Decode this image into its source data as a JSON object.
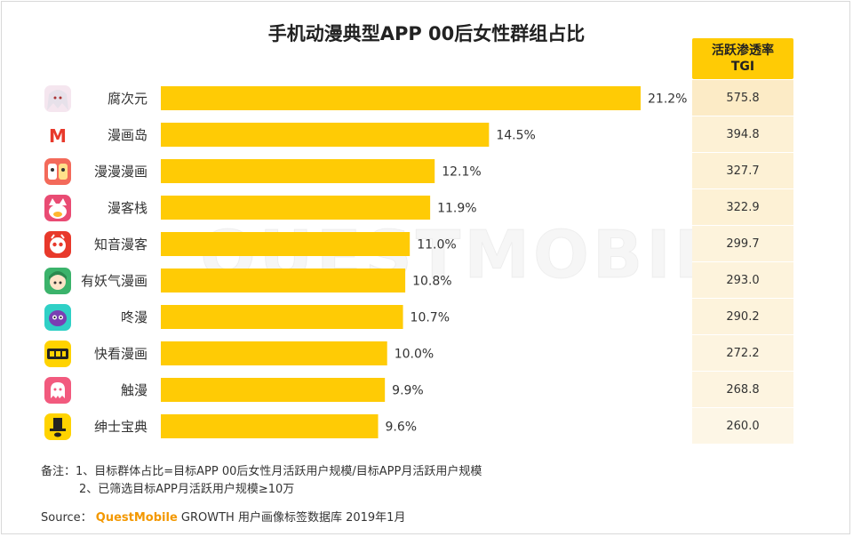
{
  "title": "手机动漫典型APP 00后女性群组占比",
  "watermark": "QUESTMOBILE",
  "tgi_header_line1": "活跃渗透率",
  "tgi_header_line2": "TGI",
  "colors": {
    "bar": "#ffcb05",
    "tgi_header": "#ffcb05",
    "tgi_cells": [
      "#fcebc6",
      "#fdf1d5",
      "#fdf1d5",
      "#fdf1d5",
      "#fdf3dc",
      "#fdf3dc",
      "#fdf3dc",
      "#fdf4e0",
      "#fdf4e0",
      "#fdf6e6"
    ]
  },
  "apps": [
    {
      "name": "腐次元",
      "icon": "anime-girl-icon"
    },
    {
      "name": "漫画岛",
      "icon": "red-m-icon"
    },
    {
      "name": "漫漫漫画",
      "icon": "cartoon-characters-icon"
    },
    {
      "name": "漫客栈",
      "icon": "cat-mascot-icon"
    },
    {
      "name": "知音漫客",
      "icon": "red-mascot-icon"
    },
    {
      "name": "有妖气漫画",
      "icon": "green-girl-icon"
    },
    {
      "name": "咚漫",
      "icon": "purple-mascot-icon"
    },
    {
      "name": "快看漫画",
      "icon": "kuaikan-logo-icon"
    },
    {
      "name": "触漫",
      "icon": "pink-ghost-icon"
    },
    {
      "name": "绅士宝典",
      "icon": "top-hat-icon"
    }
  ],
  "chart_data": {
    "type": "bar",
    "orientation": "horizontal",
    "title": "手机动漫典型APP 00后女性群组占比",
    "categories": [
      "腐次元",
      "漫画岛",
      "漫漫漫画",
      "漫客栈",
      "知音漫客",
      "有妖气漫画",
      "咚漫",
      "快看漫画",
      "触漫",
      "绅士宝典"
    ],
    "values": [
      21.2,
      14.5,
      12.1,
      11.9,
      11.0,
      10.8,
      10.7,
      10.0,
      9.9,
      9.6
    ],
    "value_labels": [
      "21.2%",
      "14.5%",
      "12.1%",
      "11.9%",
      "11.0%",
      "10.8%",
      "10.7%",
      "10.0%",
      "9.9%",
      "9.6%"
    ],
    "tgi": [
      "575.8",
      "394.8",
      "327.7",
      "322.9",
      "299.7",
      "293.0",
      "290.2",
      "272.2",
      "268.8",
      "260.0"
    ],
    "xlim": [
      0,
      21.2
    ],
    "grid": false,
    "legend": "none"
  },
  "notes": {
    "line1": "备注：1、目标群体占比=目标APP 00后女性月活跃用户规模/目标APP月活跃用户规模",
    "line2": "2、已筛选目标APP月活跃用户规模≥10万"
  },
  "source": {
    "label": "Source：",
    "brand": "QuestMobile",
    "rest": " GROWTH 用户画像标签数据库 2019年1月"
  }
}
